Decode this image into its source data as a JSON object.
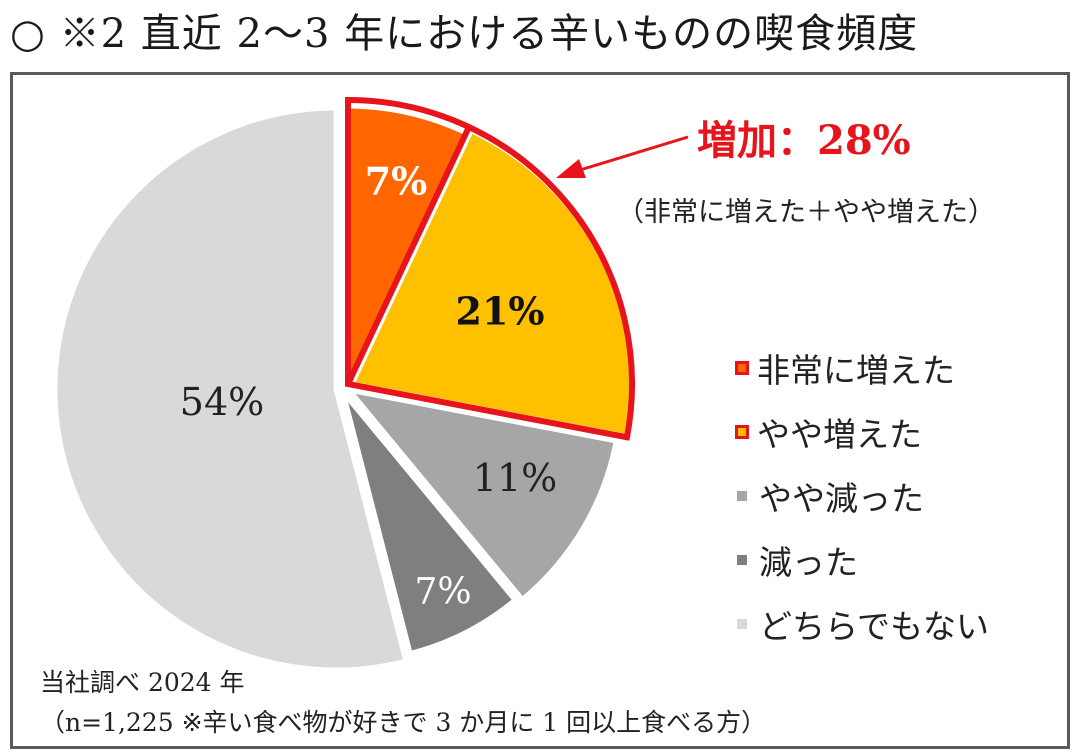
{
  "title": "○ ※2 直近 2～3 年における辛いものの喫食頻度",
  "chart_data": {
    "type": "pie",
    "start_angle_deg": 0,
    "direction": "clockwise",
    "slices": [
      {
        "key": "s1",
        "name": "非常に増えた",
        "value": 7,
        "label": "7%",
        "color": "#FF6600",
        "label_color": "#ffffff"
      },
      {
        "key": "s2",
        "name": "やや増えた",
        "value": 21,
        "label": "21%",
        "color": "#FFC000",
        "label_color": "#111111"
      },
      {
        "key": "s3",
        "name": "やや減った",
        "value": 11,
        "label": "11%",
        "color": "#A6A6A6",
        "label_color": "#222222"
      },
      {
        "key": "s4",
        "name": "減った",
        "value": 7,
        "label": "7%",
        "color": "#7F7F7F",
        "label_color": "#ffffff"
      },
      {
        "key": "s5",
        "name": "どちらでもない",
        "value": 54,
        "label": "54%",
        "color": "#D9D9D9",
        "label_color": "#222222"
      }
    ],
    "highlight": {
      "label": "増加：28%",
      "note": "（非常に増えた＋やや増えた）",
      "color": "#E8141B"
    },
    "legend": [
      {
        "key": "s1",
        "label": "非常に増えた",
        "color": "#FF6600",
        "border": "#E8141B"
      },
      {
        "key": "s2",
        "label": "やや増えた",
        "color": "#FFC000",
        "border": "#E8141B"
      },
      {
        "key": "s3",
        "label": "やや減った",
        "color": "#A6A6A6",
        "border": ""
      },
      {
        "key": "s4",
        "label": "減った",
        "color": "#7F7F7F",
        "border": ""
      },
      {
        "key": "s5",
        "label": "どちらでもない",
        "color": "#D9D9D9",
        "border": ""
      }
    ]
  },
  "source": {
    "line1": "当社調べ 2024 年",
    "line2": "（n=1,225 ※辛い食べ物が好きで 3 か月に 1 回以上食べる方）"
  }
}
